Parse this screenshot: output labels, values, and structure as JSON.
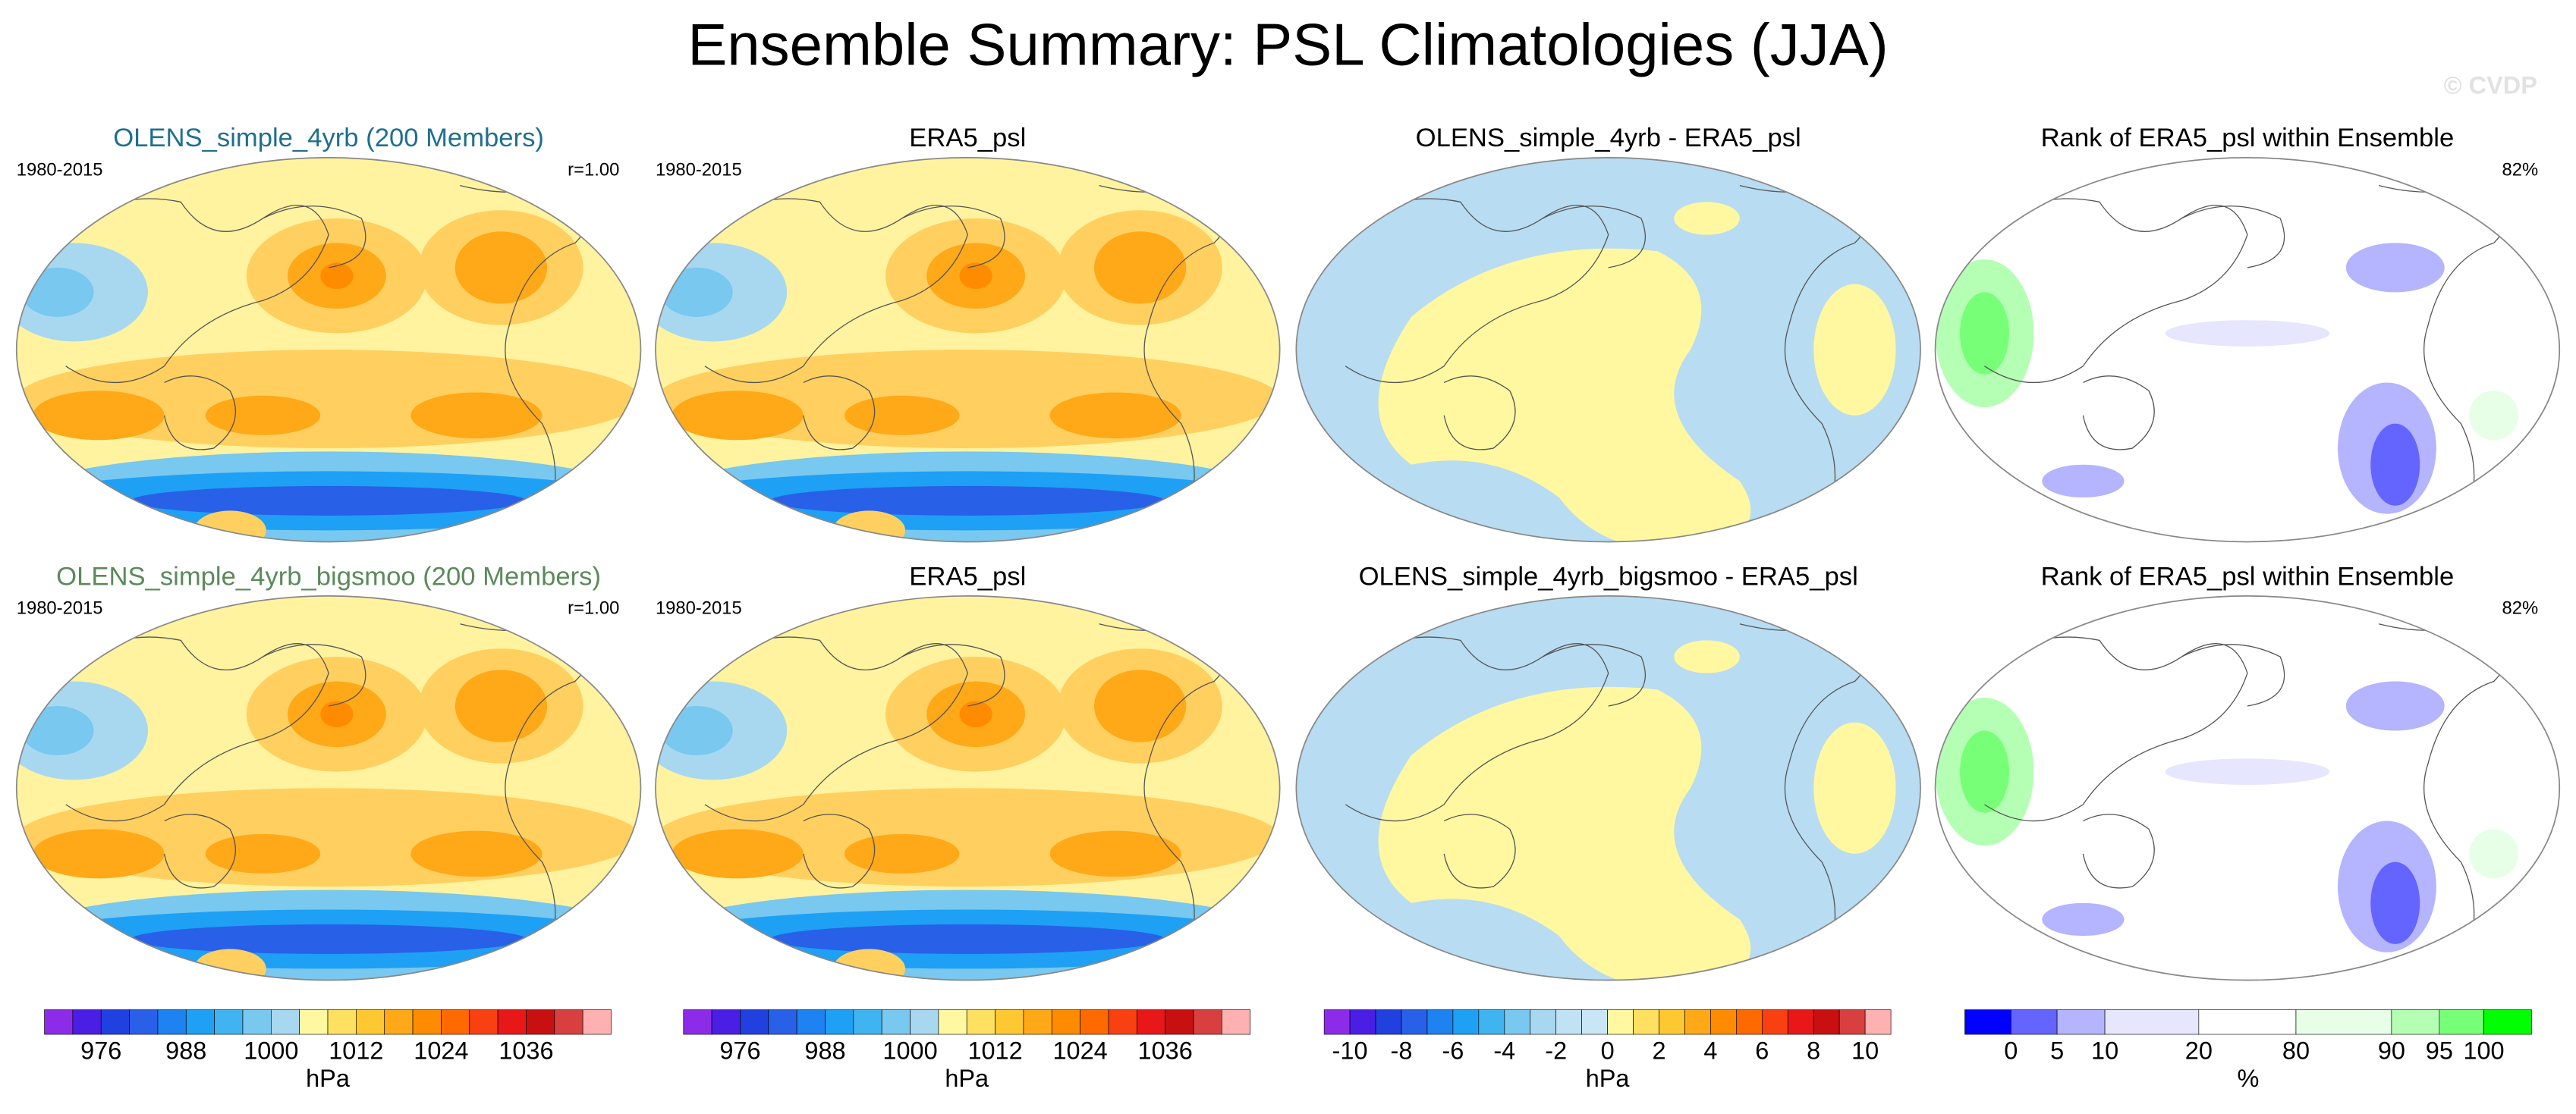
{
  "title": "Ensemble Summary: PSL Climatologies (JJA)",
  "watermark": "© CVDP",
  "panels": [
    {
      "title": "OLENS_simple_4yrb (200 Members)",
      "title_color": "#1f6f8f",
      "left_label": "1980-2015",
      "right_label": "r=1.00"
    },
    {
      "title": "ERA5_psl",
      "title_color": "#000000",
      "left_label": "1980-2015"
    },
    {
      "title": "OLENS_simple_4yrb - ERA5_psl",
      "title_color": "#000000"
    },
    {
      "title": "Rank of ERA5_psl within Ensemble",
      "title_color": "#000000",
      "right_label": "82%"
    },
    {
      "title": "OLENS_simple_4yrb_bigsmoo (200 Members)",
      "title_color": "#5b8a5b",
      "left_label": "1980-2015",
      "right_label": "r=1.00"
    },
    {
      "title": "ERA5_psl",
      "title_color": "#000000",
      "left_label": "1980-2015"
    },
    {
      "title": "OLENS_simple_4yrb_bigsmoo - ERA5_psl",
      "title_color": "#000000"
    },
    {
      "title": "Rank of ERA5_psl within Ensemble",
      "title_color": "#000000",
      "right_label": "82%"
    }
  ],
  "colorbars": [
    {
      "colors": [
        "#8c2ce8",
        "#4b1ee6",
        "#2040e0",
        "#2860e8",
        "#1e82f0",
        "#1ea0f5",
        "#40b4f0",
        "#78c8f0",
        "#a8d8f0",
        "#fff8a0",
        "#ffe060",
        "#ffc830",
        "#ffa818",
        "#ff8c00",
        "#ff6a00",
        "#f84010",
        "#e81818",
        "#c81010",
        "#d84040",
        "#ffb0b0"
      ],
      "ticks": [
        976,
        988,
        1000,
        1012,
        1024,
        1036
      ],
      "unit": "hPa"
    },
    {
      "colors": [
        "#8c2ce8",
        "#4b1ee6",
        "#2040e0",
        "#2860e8",
        "#1e82f0",
        "#1ea0f5",
        "#40b4f0",
        "#78c8f0",
        "#a8d8f0",
        "#fff8a0",
        "#ffe060",
        "#ffc830",
        "#ffa818",
        "#ff8c00",
        "#ff6a00",
        "#f84010",
        "#e81818",
        "#c81010",
        "#d84040",
        "#ffb0b0"
      ],
      "ticks": [
        976,
        988,
        1000,
        1012,
        1024,
        1036
      ],
      "unit": "hPa"
    },
    {
      "colors": [
        "#8c2ce8",
        "#4b1ee6",
        "#2040e0",
        "#2860e8",
        "#1e82f0",
        "#1ea0f5",
        "#40b4f0",
        "#78c8f0",
        "#a8d8f0",
        "#c0e2f4",
        "#c8e6f6",
        "#fff8a0",
        "#ffe060",
        "#ffc830",
        "#ffa818",
        "#ff8c00",
        "#ff6a00",
        "#f84010",
        "#e81818",
        "#c81010",
        "#d84040",
        "#ffb0b0"
      ],
      "ticks": [
        -10,
        -8,
        -6,
        -4,
        -2,
        0,
        2,
        4,
        6,
        8,
        10
      ],
      "unit": "hPa"
    },
    {
      "colors": [
        "#0000ff",
        "#6464ff",
        "#b4b4ff",
        "#e6e6ff",
        "#ffffff",
        "#e6ffe6",
        "#b4ffb4",
        "#78ff78",
        "#00ff00"
      ],
      "ticks": [
        0,
        5,
        10,
        20,
        80,
        90,
        95,
        100
      ],
      "unit": "%"
    }
  ]
}
